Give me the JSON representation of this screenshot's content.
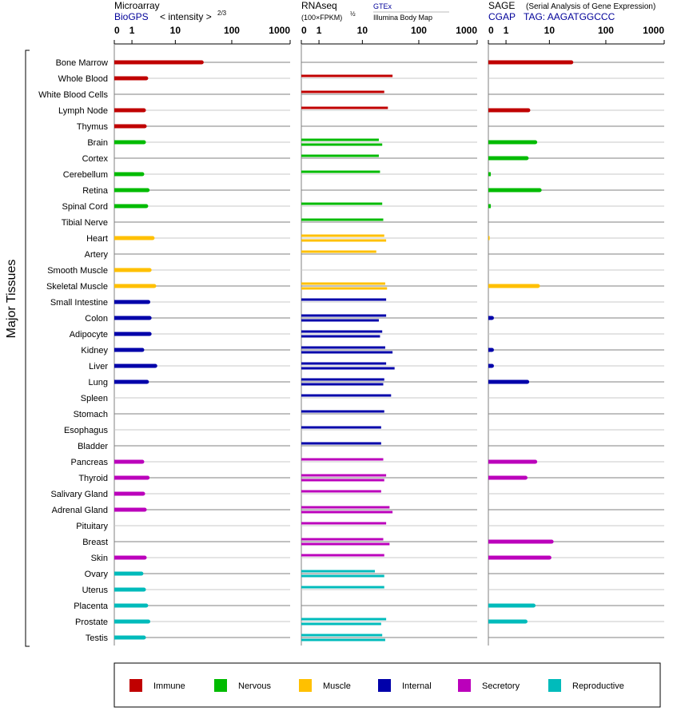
{
  "chart_data": {
    "type": "bar",
    "ylabel": "Major Tissues",
    "tissues": [
      "Bone Marrow",
      "Whole Blood",
      "White Blood Cells",
      "Lymph Node",
      "Thymus",
      "Brain",
      "Cortex",
      "Cerebellum",
      "Retina",
      "Spinal Cord",
      "Tibial Nerve",
      "Heart",
      "Artery",
      "Smooth Muscle",
      "Skeletal Muscle",
      "Small Intestine",
      "Colon",
      "Adipocyte",
      "Kidney",
      "Liver",
      "Lung",
      "Spleen",
      "Stomach",
      "Esophagus",
      "Bladder",
      "Pancreas",
      "Thyroid",
      "Salivary Gland",
      "Adrenal Gland",
      "Pituitary",
      "Breast",
      "Skin",
      "Ovary",
      "Uterus",
      "Placenta",
      "Prostate",
      "Testis"
    ],
    "tissue_groups": [
      "Immune",
      "Immune",
      "Immune",
      "Immune",
      "Immune",
      "Nervous",
      "Nervous",
      "Nervous",
      "Nervous",
      "Nervous",
      "Nervous",
      "Muscle",
      "Muscle",
      "Muscle",
      "Muscle",
      "Internal",
      "Internal",
      "Internal",
      "Internal",
      "Internal",
      "Internal",
      "Internal",
      "Internal",
      "Internal",
      "Internal",
      "Secretory",
      "Secretory",
      "Secretory",
      "Secretory",
      "Secretory",
      "Secretory",
      "Secretory",
      "Reproductive",
      "Reproductive",
      "Reproductive",
      "Reproductive",
      "Reproductive"
    ],
    "legend": [
      {
        "name": "Immune",
        "color": "#c00000"
      },
      {
        "name": "Nervous",
        "color": "#00bb00"
      },
      {
        "name": "Muscle",
        "color": "#ffc000"
      },
      {
        "name": "Internal",
        "color": "#0000aa"
      },
      {
        "name": "Secretory",
        "color": "#bb00bb"
      },
      {
        "name": "Reproductive",
        "color": "#00bbbb"
      }
    ],
    "legend_position": "bottom",
    "axis_ticks": [
      "0",
      "1",
      "10",
      "100",
      "1000"
    ],
    "xlim": [
      0,
      1000
    ],
    "panels": [
      {
        "title": "Microarray",
        "subtitle_link": "BioGPS",
        "subtitle_text": "< intensity >",
        "subtitle_exponent": "2/3",
        "values": [
          30,
          2.5,
          null,
          2.2,
          2.3,
          2.2,
          null,
          2.0,
          2.7,
          2.5,
          null,
          3.5,
          null,
          3.0,
          3.8,
          2.8,
          3.0,
          3.0,
          2.0,
          4.0,
          2.6,
          null,
          null,
          null,
          null,
          2.0,
          2.7,
          2.1,
          2.3,
          null,
          null,
          2.3,
          1.9,
          2.2,
          2.5,
          2.8,
          2.2
        ]
      },
      {
        "title": "RNAseq",
        "subtitle_text": "(100×FPKM)",
        "subtitle_exponent": "½",
        "source_link": "GTEx",
        "source_text": "Illumina Body Map",
        "values": [
          [
            null,
            null
          ],
          [
            35,
            null
          ],
          [
            25,
            null
          ],
          [
            29,
            null
          ],
          [
            null,
            null
          ],
          [
            20,
            23
          ],
          [
            20,
            null
          ],
          [
            21,
            null
          ],
          [
            null,
            null
          ],
          [
            23,
            null
          ],
          [
            24,
            null
          ],
          [
            25,
            27
          ],
          [
            18,
            null
          ],
          [
            null,
            null
          ],
          [
            26,
            28
          ],
          [
            27,
            null
          ],
          [
            27,
            20
          ],
          [
            23,
            21
          ],
          [
            26,
            35
          ],
          [
            27,
            38
          ],
          [
            25,
            24
          ],
          [
            33,
            null
          ],
          [
            25,
            null
          ],
          [
            22,
            null
          ],
          [
            22,
            null
          ],
          [
            24,
            null
          ],
          [
            27,
            25
          ],
          [
            22,
            null
          ],
          [
            31,
            35
          ],
          [
            27,
            null
          ],
          [
            24,
            31
          ],
          [
            25,
            null
          ],
          [
            17,
            25
          ],
          [
            25,
            null
          ],
          [
            null,
            null
          ],
          [
            27,
            22
          ],
          [
            23,
            26
          ]
        ]
      },
      {
        "title": "SAGE",
        "subtitle_note": "(Serial Analysis of Gene Expression)",
        "subtitle_link": "CGAP",
        "subtitle_tag": "TAG: AAGATGGCCC",
        "values": [
          25,
          null,
          null,
          3.8,
          null,
          5.3,
          3.5,
          0.1,
          6.5,
          0.1,
          null,
          0.05,
          null,
          null,
          6.0,
          null,
          0.15,
          null,
          0.15,
          0.15,
          3.6,
          null,
          null,
          null,
          null,
          5.3,
          3.3,
          null,
          null,
          null,
          11,
          10,
          null,
          null,
          4.9,
          3.3,
          null
        ]
      }
    ]
  }
}
